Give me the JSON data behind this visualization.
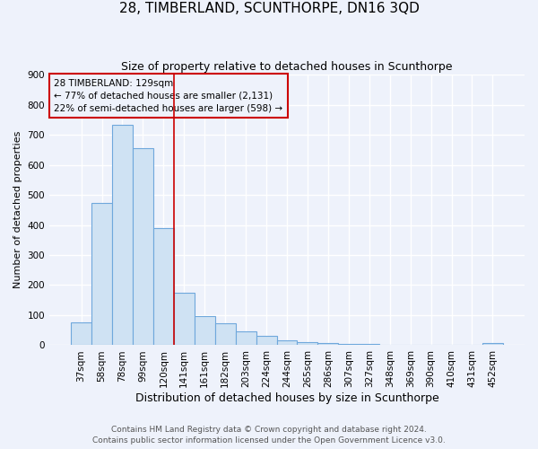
{
  "title": "28, TIMBERLAND, SCUNTHORPE, DN16 3QD",
  "subtitle": "Size of property relative to detached houses in Scunthorpe",
  "xlabel": "Distribution of detached houses by size in Scunthorpe",
  "ylabel": "Number of detached properties",
  "bar_labels": [
    "37sqm",
    "58sqm",
    "78sqm",
    "99sqm",
    "120sqm",
    "141sqm",
    "161sqm",
    "182sqm",
    "203sqm",
    "224sqm",
    "244sqm",
    "265sqm",
    "286sqm",
    "307sqm",
    "327sqm",
    "348sqm",
    "369sqm",
    "390sqm",
    "410sqm",
    "431sqm",
    "452sqm"
  ],
  "bar_values": [
    75,
    472,
    733,
    655,
    390,
    175,
    97,
    73,
    45,
    32,
    15,
    10,
    7,
    4,
    3,
    0,
    0,
    0,
    0,
    0,
    7
  ],
  "bar_color": "#cfe2f3",
  "bar_edge_color": "#6fa8dc",
  "vline_x": 4.5,
  "vline_color": "#cc0000",
  "annotation_title": "28 TIMBERLAND: 129sqm",
  "annotation_line1": "← 77% of detached houses are smaller (2,131)",
  "annotation_line2": "22% of semi-detached houses are larger (598) →",
  "annotation_box_color": "#cc0000",
  "ylim": [
    0,
    900
  ],
  "yticks": [
    0,
    100,
    200,
    300,
    400,
    500,
    600,
    700,
    800,
    900
  ],
  "footer1": "Contains HM Land Registry data © Crown copyright and database right 2024.",
  "footer2": "Contains public sector information licensed under the Open Government Licence v3.0.",
  "bg_color": "#eef2fb",
  "grid_color": "#ffffff",
  "title_fontsize": 11,
  "subtitle_fontsize": 9,
  "xlabel_fontsize": 9,
  "ylabel_fontsize": 8,
  "tick_fontsize": 7.5,
  "footer_fontsize": 6.5
}
